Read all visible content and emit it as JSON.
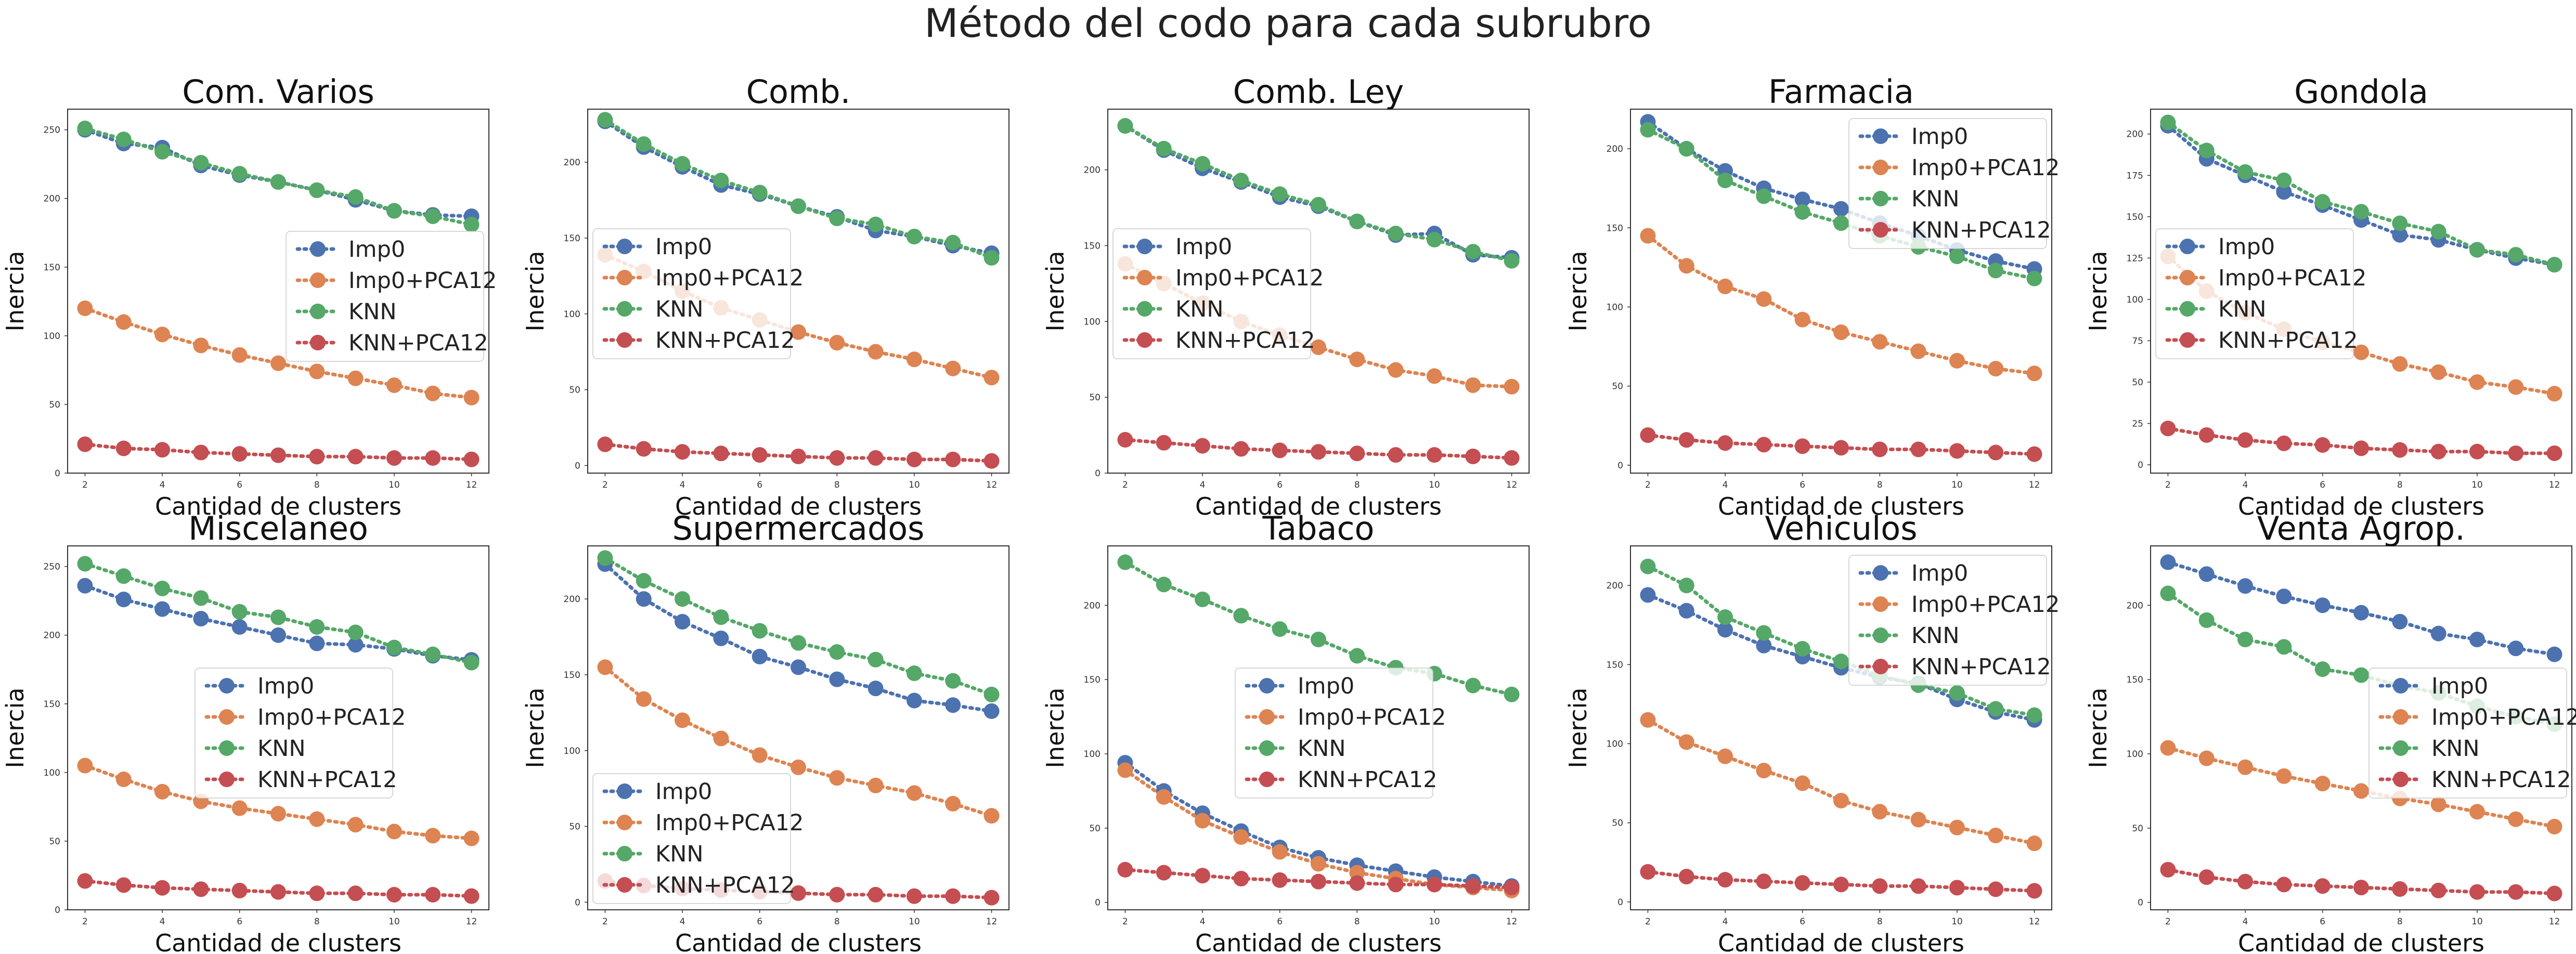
{
  "figure": {
    "title": "Método del codo para cada subrubro"
  },
  "colors": {
    "Imp0": "#4c72b0",
    "Imp0+PCA12": "#dd8452",
    "KNN": "#55a868",
    "KNN+PCA12": "#c44e52"
  },
  "chart_data": [
    {
      "type": "line",
      "title": "Com. Varios",
      "xlabel": "Cantidad de clusters",
      "ylabel": "Inercia",
      "x": [
        2,
        3,
        4,
        5,
        6,
        7,
        8,
        9,
        10,
        11,
        12
      ],
      "ylim": [
        0,
        265
      ],
      "yticks": [
        0,
        50,
        100,
        150,
        200,
        250
      ],
      "xticks": [
        2,
        4,
        6,
        8,
        10,
        12
      ],
      "legend": "center-right",
      "series": [
        {
          "name": "Imp0",
          "values": [
            250,
            240,
            237,
            224,
            217,
            212,
            206,
            199,
            191,
            188,
            187
          ]
        },
        {
          "name": "Imp0+PCA12",
          "values": [
            120,
            110,
            101,
            93,
            86,
            80,
            74,
            69,
            64,
            58,
            55
          ]
        },
        {
          "name": "KNN",
          "values": [
            251,
            243,
            234,
            226,
            218,
            212,
            206,
            201,
            191,
            187,
            181
          ]
        },
        {
          "name": "KNN+PCA12",
          "values": [
            21,
            18,
            17,
            15,
            14,
            13,
            12,
            12,
            11,
            11,
            10
          ]
        }
      ]
    },
    {
      "type": "line",
      "title": "Comb.",
      "xlabel": "Cantidad de clusters",
      "ylabel": "Inercia",
      "x": [
        2,
        3,
        4,
        5,
        6,
        7,
        8,
        9,
        10,
        11,
        12
      ],
      "ylim": [
        -5,
        235
      ],
      "yticks": [
        0,
        50,
        100,
        150,
        200
      ],
      "xticks": [
        2,
        4,
        6,
        8,
        10,
        12
      ],
      "legend": "center-left",
      "series": [
        {
          "name": "Imp0",
          "values": [
            227,
            210,
            197,
            185,
            179,
            171,
            164,
            155,
            151,
            145,
            140
          ]
        },
        {
          "name": "Imp0+PCA12",
          "values": [
            139,
            128,
            115,
            104,
            96,
            88,
            81,
            75,
            70,
            64,
            58
          ]
        },
        {
          "name": "KNN",
          "values": [
            228,
            212,
            199,
            188,
            180,
            171,
            163,
            159,
            151,
            147,
            137
          ]
        },
        {
          "name": "KNN+PCA12",
          "values": [
            14,
            11,
            9,
            8,
            7,
            6,
            5,
            5,
            4,
            4,
            3
          ]
        }
      ]
    },
    {
      "type": "line",
      "title": "Comb. Ley",
      "xlabel": "Cantidad de clusters",
      "ylabel": "Inercia",
      "x": [
        2,
        3,
        4,
        5,
        6,
        7,
        8,
        9,
        10,
        11,
        12
      ],
      "ylim": [
        0,
        240
      ],
      "yticks": [
        0,
        50,
        100,
        150,
        200
      ],
      "xticks": [
        2,
        4,
        6,
        8,
        10,
        12
      ],
      "legend": "center-left",
      "series": [
        {
          "name": "Imp0",
          "values": [
            229,
            213,
            201,
            192,
            182,
            176,
            166,
            157,
            158,
            144,
            142
          ]
        },
        {
          "name": "Imp0+PCA12",
          "values": [
            138,
            125,
            112,
            100,
            91,
            83,
            75,
            68,
            64,
            58,
            57
          ]
        },
        {
          "name": "KNN",
          "values": [
            229,
            214,
            204,
            193,
            184,
            177,
            166,
            158,
            154,
            146,
            140
          ]
        },
        {
          "name": "KNN+PCA12",
          "values": [
            22,
            20,
            18,
            16,
            15,
            14,
            13,
            12,
            12,
            11,
            10
          ]
        }
      ]
    },
    {
      "type": "line",
      "title": "Farmacia",
      "xlabel": "Cantidad de clusters",
      "ylabel": "Inercia",
      "x": [
        2,
        3,
        4,
        5,
        6,
        7,
        8,
        9,
        10,
        11,
        12
      ],
      "ylim": [
        -5,
        225
      ],
      "yticks": [
        0,
        50,
        100,
        150,
        200
      ],
      "xticks": [
        2,
        4,
        6,
        8,
        10,
        12
      ],
      "legend": "upper-right",
      "series": [
        {
          "name": "Imp0",
          "values": [
            217,
            200,
            186,
            175,
            168,
            162,
            153,
            145,
            136,
            129,
            124
          ]
        },
        {
          "name": "Imp0+PCA12",
          "values": [
            145,
            126,
            113,
            105,
            92,
            84,
            78,
            72,
            66,
            61,
            58
          ]
        },
        {
          "name": "KNN",
          "values": [
            212,
            200,
            180,
            170,
            160,
            153,
            145,
            138,
            132,
            123,
            118
          ]
        },
        {
          "name": "KNN+PCA12",
          "values": [
            19,
            16,
            14,
            13,
            12,
            11,
            10,
            10,
            9,
            8,
            7
          ]
        }
      ]
    },
    {
      "type": "line",
      "title": "Gondola",
      "xlabel": "Cantidad de clusters",
      "ylabel": "Inercia",
      "x": [
        2,
        3,
        4,
        5,
        6,
        7,
        8,
        9,
        10,
        11,
        12
      ],
      "ylim": [
        -5,
        215
      ],
      "yticks": [
        0,
        25,
        50,
        75,
        100,
        125,
        150,
        175,
        200
      ],
      "xticks": [
        2,
        4,
        6,
        8,
        10,
        12
      ],
      "legend": "center-left",
      "series": [
        {
          "name": "Imp0",
          "values": [
            205,
            185,
            175,
            165,
            157,
            148,
            139,
            136,
            130,
            125,
            121
          ]
        },
        {
          "name": "Imp0+PCA12",
          "values": [
            126,
            105,
            92,
            82,
            74,
            68,
            61,
            56,
            50,
            47,
            43
          ]
        },
        {
          "name": "KNN",
          "values": [
            207,
            190,
            177,
            172,
            159,
            153,
            146,
            141,
            130,
            127,
            121
          ]
        },
        {
          "name": "KNN+PCA12",
          "values": [
            22,
            18,
            15,
            13,
            12,
            10,
            9,
            8,
            8,
            7,
            7
          ]
        }
      ]
    },
    {
      "type": "line",
      "title": "Miscelaneo",
      "xlabel": "Cantidad de clusters",
      "ylabel": "Inercia",
      "x": [
        2,
        3,
        4,
        5,
        6,
        7,
        8,
        9,
        10,
        11,
        12
      ],
      "ylim": [
        0,
        265
      ],
      "yticks": [
        0,
        50,
        100,
        150,
        200,
        250
      ],
      "xticks": [
        2,
        4,
        6,
        8,
        10,
        12
      ],
      "legend": "center",
      "series": [
        {
          "name": "Imp0",
          "values": [
            236,
            226,
            219,
            212,
            206,
            200,
            194,
            193,
            190,
            185,
            182
          ]
        },
        {
          "name": "Imp0+PCA12",
          "values": [
            105,
            95,
            86,
            79,
            74,
            70,
            66,
            62,
            57,
            54,
            52
          ]
        },
        {
          "name": "KNN",
          "values": [
            252,
            243,
            234,
            227,
            217,
            213,
            206,
            202,
            191,
            186,
            180
          ]
        },
        {
          "name": "KNN+PCA12",
          "values": [
            21,
            18,
            16,
            15,
            14,
            13,
            12,
            12,
            11,
            11,
            10
          ]
        }
      ]
    },
    {
      "type": "line",
      "title": "Supermercados",
      "xlabel": "Cantidad de clusters",
      "ylabel": "Inercia",
      "x": [
        2,
        3,
        4,
        5,
        6,
        7,
        8,
        9,
        10,
        11,
        12
      ],
      "ylim": [
        -5,
        235
      ],
      "yticks": [
        0,
        50,
        100,
        150,
        200
      ],
      "xticks": [
        2,
        4,
        6,
        8,
        10,
        12
      ],
      "legend": "lower-left",
      "series": [
        {
          "name": "Imp0",
          "values": [
            223,
            200,
            185,
            174,
            162,
            155,
            147,
            141,
            133,
            130,
            126
          ]
        },
        {
          "name": "Imp0+PCA12",
          "values": [
            155,
            134,
            120,
            108,
            97,
            89,
            82,
            77,
            72,
            65,
            57
          ]
        },
        {
          "name": "KNN",
          "values": [
            227,
            212,
            200,
            188,
            179,
            171,
            165,
            160,
            151,
            146,
            137
          ]
        },
        {
          "name": "KNN+PCA12",
          "values": [
            14,
            11,
            9,
            8,
            7,
            6,
            5,
            5,
            4,
            4,
            3
          ]
        }
      ]
    },
    {
      "type": "line",
      "title": "Tabaco",
      "xlabel": "Cantidad de clusters",
      "ylabel": "Inercia",
      "x": [
        2,
        3,
        4,
        5,
        6,
        7,
        8,
        9,
        10,
        11,
        12
      ],
      "ylim": [
        -5,
        240
      ],
      "yticks": [
        0,
        50,
        100,
        150,
        200
      ],
      "xticks": [
        2,
        4,
        6,
        8,
        10,
        12
      ],
      "legend": "center",
      "series": [
        {
          "name": "Imp0",
          "values": [
            94,
            75,
            60,
            48,
            37,
            30,
            25,
            21,
            17,
            14,
            11
          ]
        },
        {
          "name": "Imp0+PCA12",
          "values": [
            89,
            71,
            55,
            44,
            34,
            26,
            20,
            16,
            12,
            10,
            8
          ]
        },
        {
          "name": "KNN",
          "values": [
            229,
            214,
            204,
            193,
            184,
            177,
            166,
            158,
            154,
            146,
            140
          ]
        },
        {
          "name": "KNN+PCA12",
          "values": [
            22,
            20,
            18,
            16,
            15,
            14,
            13,
            12,
            12,
            11,
            10
          ]
        }
      ]
    },
    {
      "type": "line",
      "title": "Vehiculos",
      "xlabel": "Cantidad de clusters",
      "ylabel": "Inercia",
      "x": [
        2,
        3,
        4,
        5,
        6,
        7,
        8,
        9,
        10,
        11,
        12
      ],
      "ylim": [
        -5,
        225
      ],
      "yticks": [
        0,
        50,
        100,
        150,
        200
      ],
      "xticks": [
        2,
        4,
        6,
        8,
        10,
        12
      ],
      "legend": "upper-right",
      "series": [
        {
          "name": "Imp0",
          "values": [
            194,
            184,
            172,
            162,
            155,
            148,
            142,
            138,
            128,
            120,
            115
          ]
        },
        {
          "name": "Imp0+PCA12",
          "values": [
            115,
            101,
            92,
            83,
            75,
            64,
            57,
            52,
            47,
            42,
            37
          ]
        },
        {
          "name": "KNN",
          "values": [
            212,
            200,
            180,
            170,
            160,
            152,
            143,
            137,
            132,
            122,
            118
          ]
        },
        {
          "name": "KNN+PCA12",
          "values": [
            19,
            16,
            14,
            13,
            12,
            11,
            10,
            10,
            9,
            8,
            7
          ]
        }
      ]
    },
    {
      "type": "line",
      "title": "Venta Agrop.",
      "xlabel": "Cantidad de clusters",
      "ylabel": "Inercia",
      "x": [
        2,
        3,
        4,
        5,
        6,
        7,
        8,
        9,
        10,
        11,
        12
      ],
      "ylim": [
        -5,
        240
      ],
      "yticks": [
        0,
        50,
        100,
        150,
        200
      ],
      "xticks": [
        2,
        4,
        6,
        8,
        10,
        12
      ],
      "legend": "center-right",
      "series": [
        {
          "name": "Imp0",
          "values": [
            229,
            221,
            213,
            206,
            200,
            195,
            189,
            181,
            177,
            171,
            167
          ]
        },
        {
          "name": "Imp0+PCA12",
          "values": [
            104,
            97,
            91,
            85,
            80,
            75,
            70,
            66,
            61,
            56,
            51
          ]
        },
        {
          "name": "KNN",
          "values": [
            208,
            190,
            177,
            172,
            157,
            153,
            146,
            141,
            132,
            125,
            120
          ]
        },
        {
          "name": "KNN+PCA12",
          "values": [
            22,
            17,
            14,
            12,
            11,
            10,
            9,
            8,
            7,
            7,
            6
          ]
        }
      ]
    }
  ]
}
